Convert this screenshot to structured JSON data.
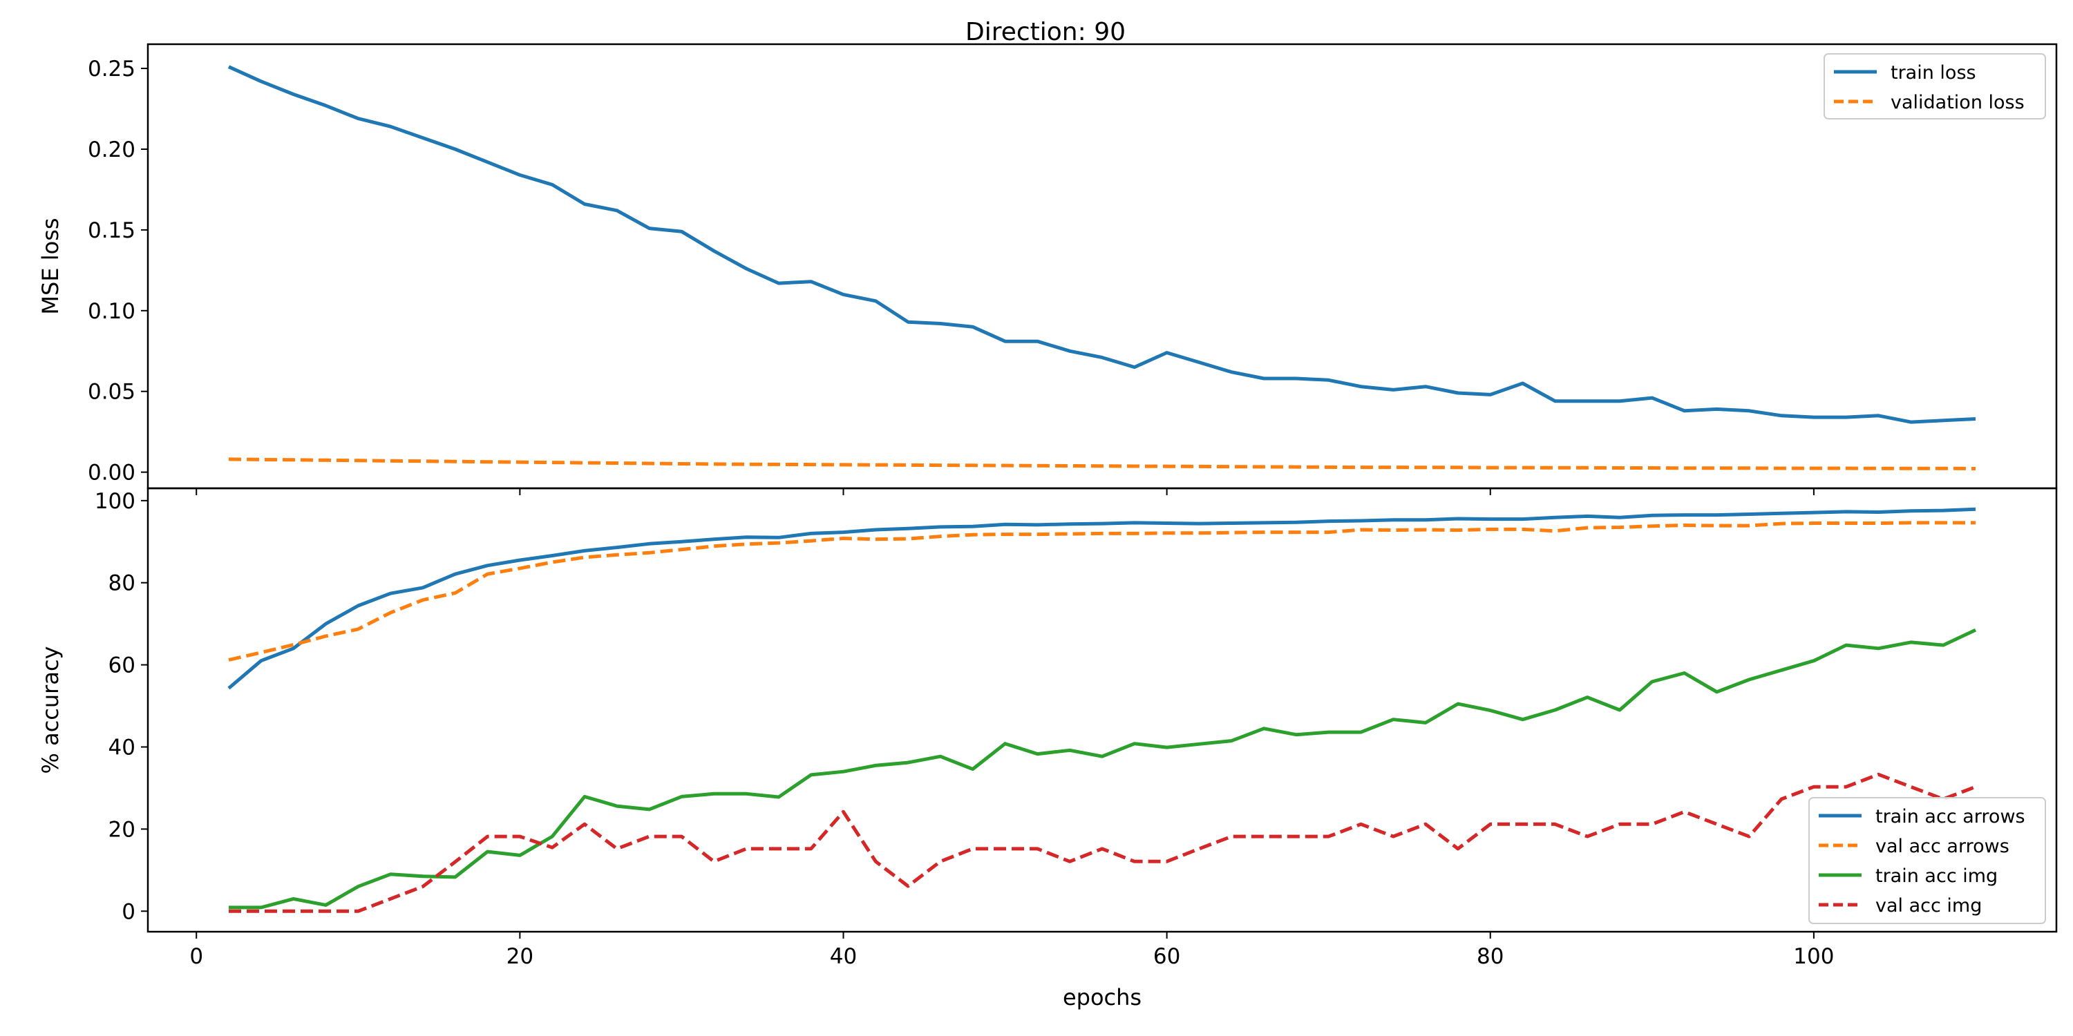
{
  "title": "Direction: 90",
  "chart_data": [
    {
      "type": "line",
      "title": "Direction: 90",
      "xlabel": "",
      "ylabel": "MSE loss",
      "xlim": [
        -3,
        115
      ],
      "ylim": [
        -0.01,
        0.265
      ],
      "xticks": [
        0,
        20,
        40,
        60,
        80,
        100
      ],
      "yticks": [
        0.0,
        0.05,
        0.1,
        0.15,
        0.2,
        0.25
      ],
      "ytick_labels": [
        "0.00",
        "0.05",
        "0.10",
        "0.15",
        "0.20",
        "0.25"
      ],
      "show_xtick_labels": false,
      "grid": false,
      "legend_position": "top-right",
      "x": [
        2,
        4,
        6,
        8,
        10,
        12,
        14,
        16,
        18,
        20,
        22,
        24,
        26,
        28,
        30,
        32,
        34,
        36,
        38,
        40,
        42,
        44,
        46,
        48,
        50,
        52,
        54,
        56,
        58,
        60,
        62,
        64,
        66,
        68,
        70,
        72,
        74,
        76,
        78,
        80,
        82,
        84,
        86,
        88,
        90,
        92,
        94,
        96,
        98,
        100,
        102,
        104,
        106,
        108,
        110
      ],
      "series": [
        {
          "name": "train loss",
          "color": "#1f77b4",
          "dashed": false,
          "values": [
            0.251,
            0.242,
            0.234,
            0.227,
            0.219,
            0.214,
            0.207,
            0.2,
            0.192,
            0.184,
            0.178,
            0.166,
            0.162,
            0.151,
            0.149,
            0.137,
            0.126,
            0.117,
            0.118,
            0.11,
            0.106,
            0.093,
            0.092,
            0.09,
            0.081,
            0.081,
            0.075,
            0.071,
            0.065,
            0.074,
            0.068,
            0.062,
            0.058,
            0.058,
            0.057,
            0.053,
            0.051,
            0.053,
            0.049,
            0.048,
            0.055,
            0.044,
            0.044,
            0.044,
            0.046,
            0.038,
            0.039,
            0.038,
            0.035,
            0.034,
            0.034,
            0.035,
            0.031,
            0.032,
            0.033
          ]
        },
        {
          "name": "validation loss",
          "color": "#ff7f0e",
          "dashed": true,
          "values": [
            0.008,
            0.0078,
            0.0076,
            0.0074,
            0.0072,
            0.007,
            0.0068,
            0.0066,
            0.0064,
            0.0062,
            0.006,
            0.0058,
            0.0056,
            0.0054,
            0.0052,
            0.005,
            0.0049,
            0.0048,
            0.0047,
            0.0046,
            0.0045,
            0.0044,
            0.0043,
            0.0042,
            0.0041,
            0.004,
            0.0039,
            0.0038,
            0.0037,
            0.0036,
            0.0035,
            0.0034,
            0.0033,
            0.0032,
            0.0031,
            0.003,
            0.003,
            0.0029,
            0.0029,
            0.0028,
            0.0028,
            0.0027,
            0.0027,
            0.0026,
            0.0026,
            0.0025,
            0.0025,
            0.0025,
            0.0024,
            0.0024,
            0.0024,
            0.0023,
            0.0023,
            0.0023,
            0.0022
          ]
        }
      ]
    },
    {
      "type": "line",
      "title": "",
      "xlabel": "epochs",
      "ylabel": "% accuracy",
      "xlim": [
        -3,
        115
      ],
      "ylim": [
        -5,
        103
      ],
      "xticks": [
        0,
        20,
        40,
        60,
        80,
        100
      ],
      "yticks": [
        0,
        20,
        40,
        60,
        80,
        100
      ],
      "ytick_labels": [
        "0",
        "20",
        "40",
        "60",
        "80",
        "100"
      ],
      "show_xtick_labels": true,
      "grid": false,
      "legend_position": "bottom-right",
      "x": [
        2,
        4,
        6,
        8,
        10,
        12,
        14,
        16,
        18,
        20,
        22,
        24,
        26,
        28,
        30,
        32,
        34,
        36,
        38,
        40,
        42,
        44,
        46,
        48,
        50,
        52,
        54,
        56,
        58,
        60,
        62,
        64,
        66,
        68,
        70,
        72,
        74,
        76,
        78,
        80,
        82,
        84,
        86,
        88,
        90,
        92,
        94,
        96,
        98,
        100,
        102,
        104,
        106,
        108,
        110
      ],
      "series": [
        {
          "name": "train acc arrows",
          "color": "#1f77b4",
          "dashed": false,
          "values": [
            54.3,
            61,
            64,
            70,
            74.4,
            77.4,
            78.8,
            82.1,
            84.2,
            85.5,
            86.6,
            87.8,
            88.6,
            89.5,
            90,
            90.6,
            91.1,
            91,
            92,
            92.3,
            92.9,
            93.2,
            93.6,
            93.7,
            94.2,
            94.1,
            94.3,
            94.4,
            94.6,
            94.5,
            94.4,
            94.5,
            94.6,
            94.7,
            95,
            95.1,
            95.3,
            95.3,
            95.6,
            95.5,
            95.5,
            95.9,
            96.2,
            95.9,
            96.4,
            96.5,
            96.5,
            96.7,
            96.9,
            97.1,
            97.3,
            97.2,
            97.5,
            97.6,
            97.9
          ]
        },
        {
          "name": "val acc arrows",
          "color": "#ff7f0e",
          "dashed": true,
          "values": [
            61.2,
            63,
            64.9,
            67,
            68.7,
            72.7,
            75.8,
            77.5,
            82.1,
            83.5,
            85,
            86.2,
            86.8,
            87.3,
            88.1,
            88.9,
            89.4,
            89.7,
            90.2,
            90.8,
            90.6,
            90.7,
            91.3,
            91.7,
            91.8,
            91.8,
            91.9,
            92,
            92,
            92.1,
            92.1,
            92.2,
            92.3,
            92.3,
            92.3,
            92.9,
            92.8,
            92.9,
            92.8,
            93,
            93,
            92.6,
            93.4,
            93.5,
            93.8,
            94,
            93.9,
            93.9,
            94.4,
            94.5,
            94.5,
            94.5,
            94.6,
            94.6,
            94.6
          ]
        },
        {
          "name": "train acc img",
          "color": "#2ca02c",
          "dashed": false,
          "values": [
            0.9,
            0.9,
            3,
            1.5,
            6,
            9,
            8.5,
            8.3,
            14.5,
            13.6,
            18.2,
            27.9,
            25.6,
            24.8,
            27.9,
            28.6,
            28.6,
            27.8,
            33.2,
            34,
            35.5,
            36.2,
            37.7,
            34.6,
            40.8,
            38.3,
            39.2,
            37.7,
            40.8,
            39.9,
            40.7,
            41.5,
            44.5,
            43,
            43.6,
            43.6,
            46.7,
            45.9,
            50.5,
            48.9,
            46.7,
            49,
            52.1,
            49,
            55.9,
            58,
            53.4,
            56.4,
            58.7,
            61,
            64.8,
            64,
            65.5,
            64.8,
            68.5
          ]
        },
        {
          "name": "val acc img",
          "color": "#d62728",
          "dashed": true,
          "values": [
            0,
            0,
            0,
            0,
            0,
            3,
            6,
            12,
            18.2,
            18.2,
            15.5,
            21.2,
            15.2,
            18.2,
            18.2,
            12.1,
            15.2,
            15.2,
            15.2,
            24.2,
            12.1,
            6.1,
            12.1,
            15.2,
            15.2,
            15.2,
            12.1,
            15.2,
            12.1,
            12.1,
            15.2,
            18.2,
            18.2,
            18.2,
            18.2,
            21.2,
            18.2,
            21.2,
            15.2,
            21.2,
            21.2,
            21.2,
            18.2,
            21.2,
            21.2,
            24.2,
            21.2,
            18.2,
            27.3,
            30.3,
            30.3,
            33.3,
            30.3,
            27.3,
            30.3
          ]
        }
      ]
    }
  ]
}
